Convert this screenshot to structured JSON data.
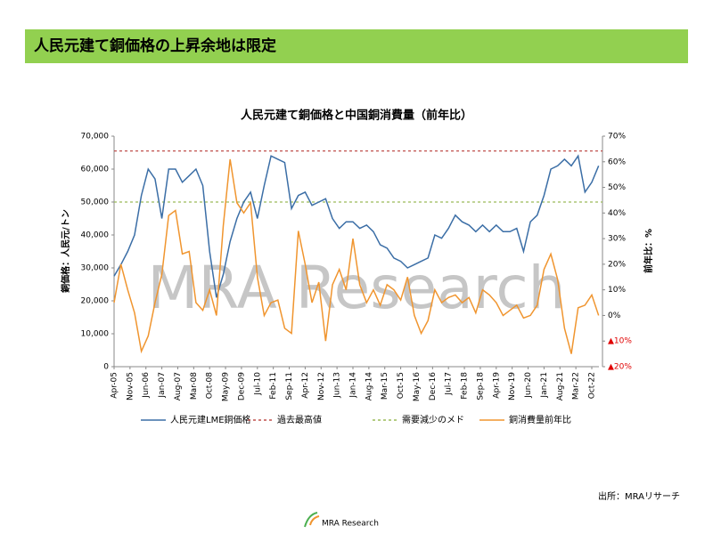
{
  "header": {
    "title": "人民元建て銅価格の上昇余地は限定"
  },
  "watermark": "MRA Research",
  "source": "出所：MRAリサーチ",
  "logo": "MRA Research",
  "chart_data": {
    "type": "line",
    "title": "人民元建て銅価格と中国銅消費量（前年比）",
    "y_label": "銅価格：人民元/トン",
    "y2_label": "前年比：%",
    "ylim": [
      0,
      70000
    ],
    "yticks": [
      0,
      {
        "value": 10000,
        "label": "10,000"
      },
      {
        "value": 20000,
        "label": "20,000"
      },
      {
        "value": 30000,
        "label": "30,000"
      },
      {
        "value": 40000,
        "label": "40,000"
      },
      {
        "value": 50000,
        "label": "50,000"
      },
      {
        "value": 60000,
        "label": "60,000"
      },
      {
        "value": 70000,
        "label": "70,000"
      }
    ],
    "y2lim": [
      -20,
      70
    ],
    "y2ticks": [
      {
        "value": -20,
        "label": "▲20%",
        "color": "#e00000"
      },
      {
        "value": -10,
        "label": "▲10%",
        "color": "#e00000"
      },
      {
        "value": 0,
        "label": "0%"
      },
      {
        "value": 10,
        "label": "10%"
      },
      {
        "value": 20,
        "label": "20%"
      },
      {
        "value": 30,
        "label": "30%"
      },
      {
        "value": 40,
        "label": "40%"
      },
      {
        "value": 50,
        "label": "50%"
      },
      {
        "value": 60,
        "label": "60%"
      },
      {
        "value": 70,
        "label": "70%"
      }
    ],
    "xlim": [
      "2005-04",
      "2022-10"
    ],
    "xticks": [
      {
        "value": "2005-04",
        "label": "Apr-05"
      },
      {
        "value": "2005-11",
        "label": "Nov-05"
      },
      {
        "value": "2006-06",
        "label": "Jun-06"
      },
      {
        "value": "2007-01",
        "label": "Jan-07"
      },
      {
        "value": "2007-08",
        "label": "Aug-07"
      },
      {
        "value": "2008-03",
        "label": "Mar-08"
      },
      {
        "value": "2008-10",
        "label": "Oct-08"
      },
      {
        "value": "2009-05",
        "label": "May-09"
      },
      {
        "value": "2009-12",
        "label": "Dec-09"
      },
      {
        "value": "2010-07",
        "label": "Jul-10"
      },
      {
        "value": "2011-02",
        "label": "Feb-11"
      },
      {
        "value": "2011-09",
        "label": "Sep-11"
      },
      {
        "value": "2012-04",
        "label": "Apr-12"
      },
      {
        "value": "2012-11",
        "label": "Nov-12"
      },
      {
        "value": "2013-06",
        "label": "Jun-13"
      },
      {
        "value": "2014-01",
        "label": "Jan-14"
      },
      {
        "value": "2014-08",
        "label": "Aug-14"
      },
      {
        "value": "2015-03",
        "label": "Mar-15"
      },
      {
        "value": "2015-10",
        "label": "Oct-15"
      },
      {
        "value": "2016-05",
        "label": "May-16"
      },
      {
        "value": "2016-12",
        "label": "Dec-16"
      },
      {
        "value": "2017-07",
        "label": "Jul-17"
      },
      {
        "value": "2018-02",
        "label": "Feb-18"
      },
      {
        "value": "2018-09",
        "label": "Sep-18"
      },
      {
        "value": "2019-04",
        "label": "Apr-19"
      },
      {
        "value": "2019-11",
        "label": "Nov-19"
      },
      {
        "value": "2020-06",
        "label": "Jun-20"
      },
      {
        "value": "2021-01",
        "label": "Jan-21"
      },
      {
        "value": "2021-08",
        "label": "Aug-21"
      },
      {
        "value": "2022-03",
        "label": "Mar-22"
      },
      {
        "value": "2022-10",
        "label": "Oct-22"
      }
    ],
    "x": [
      "2005-04",
      "2005-07",
      "2005-10",
      "2006-01",
      "2006-04",
      "2006-07",
      "2006-10",
      "2007-01",
      "2007-04",
      "2007-07",
      "2007-10",
      "2008-01",
      "2008-04",
      "2008-07",
      "2008-10",
      "2009-01",
      "2009-04",
      "2009-07",
      "2009-10",
      "2010-01",
      "2010-04",
      "2010-07",
      "2010-10",
      "2011-01",
      "2011-04",
      "2011-07",
      "2011-10",
      "2012-01",
      "2012-04",
      "2012-07",
      "2012-10",
      "2013-01",
      "2013-04",
      "2013-07",
      "2013-10",
      "2014-01",
      "2014-04",
      "2014-07",
      "2014-10",
      "2015-01",
      "2015-04",
      "2015-07",
      "2015-10",
      "2016-01",
      "2016-04",
      "2016-07",
      "2016-10",
      "2017-01",
      "2017-04",
      "2017-07",
      "2017-10",
      "2018-01",
      "2018-04",
      "2018-07",
      "2018-10",
      "2019-01",
      "2019-04",
      "2019-07",
      "2019-10",
      "2020-01",
      "2020-04",
      "2020-07",
      "2020-10",
      "2021-01",
      "2021-04",
      "2021-07",
      "2021-10",
      "2022-01",
      "2022-04",
      "2022-07",
      "2022-10",
      "2023-01"
    ],
    "series": [
      {
        "name": "人民元建LME銅価格",
        "color": "#3b6ea6",
        "axis": "y",
        "values": [
          27500,
          31000,
          35000,
          40000,
          52000,
          60000,
          57000,
          45000,
          60000,
          60000,
          56000,
          58000,
          60000,
          55000,
          35000,
          21000,
          28000,
          38000,
          45000,
          50000,
          53000,
          45000,
          55000,
          64000,
          63000,
          62000,
          48000,
          52000,
          53000,
          49000,
          50000,
          51000,
          45000,
          42000,
          44000,
          44000,
          42000,
          43000,
          41000,
          37000,
          36000,
          33000,
          32000,
          30000,
          31000,
          32000,
          33000,
          40000,
          39000,
          42000,
          46000,
          44000,
          43000,
          41000,
          43000,
          41000,
          43000,
          41000,
          41000,
          42000,
          35000,
          44000,
          46000,
          52000,
          60000,
          61000,
          63000,
          61000,
          64000,
          53000,
          56000,
          61000
        ]
      },
      {
        "name": "銅消費量前年比",
        "color": "#f0952f",
        "axis": "y2",
        "values": [
          5,
          20,
          10,
          1,
          -14,
          -8,
          5,
          16,
          39,
          41,
          24,
          25,
          5,
          2,
          10,
          0,
          35,
          61,
          44,
          40,
          44,
          15,
          0,
          5,
          6,
          -5,
          -7,
          33,
          20,
          5,
          13,
          -10,
          12,
          18,
          10,
          30,
          12,
          5,
          10,
          4,
          12,
          10,
          6,
          15,
          0,
          -7,
          -2,
          10,
          5,
          7,
          8,
          5,
          7,
          1,
          10,
          8,
          5,
          0,
          2,
          4,
          -1,
          0,
          4,
          18,
          24,
          14,
          -5,
          -15,
          3,
          4,
          8,
          0
        ]
      }
    ],
    "reference_lines": [
      {
        "name": "過去最高値",
        "color": "#c0504d",
        "value": 65500
      },
      {
        "name": "需要減少のメド",
        "color": "#9bbb59",
        "value": 50000
      }
    ]
  }
}
